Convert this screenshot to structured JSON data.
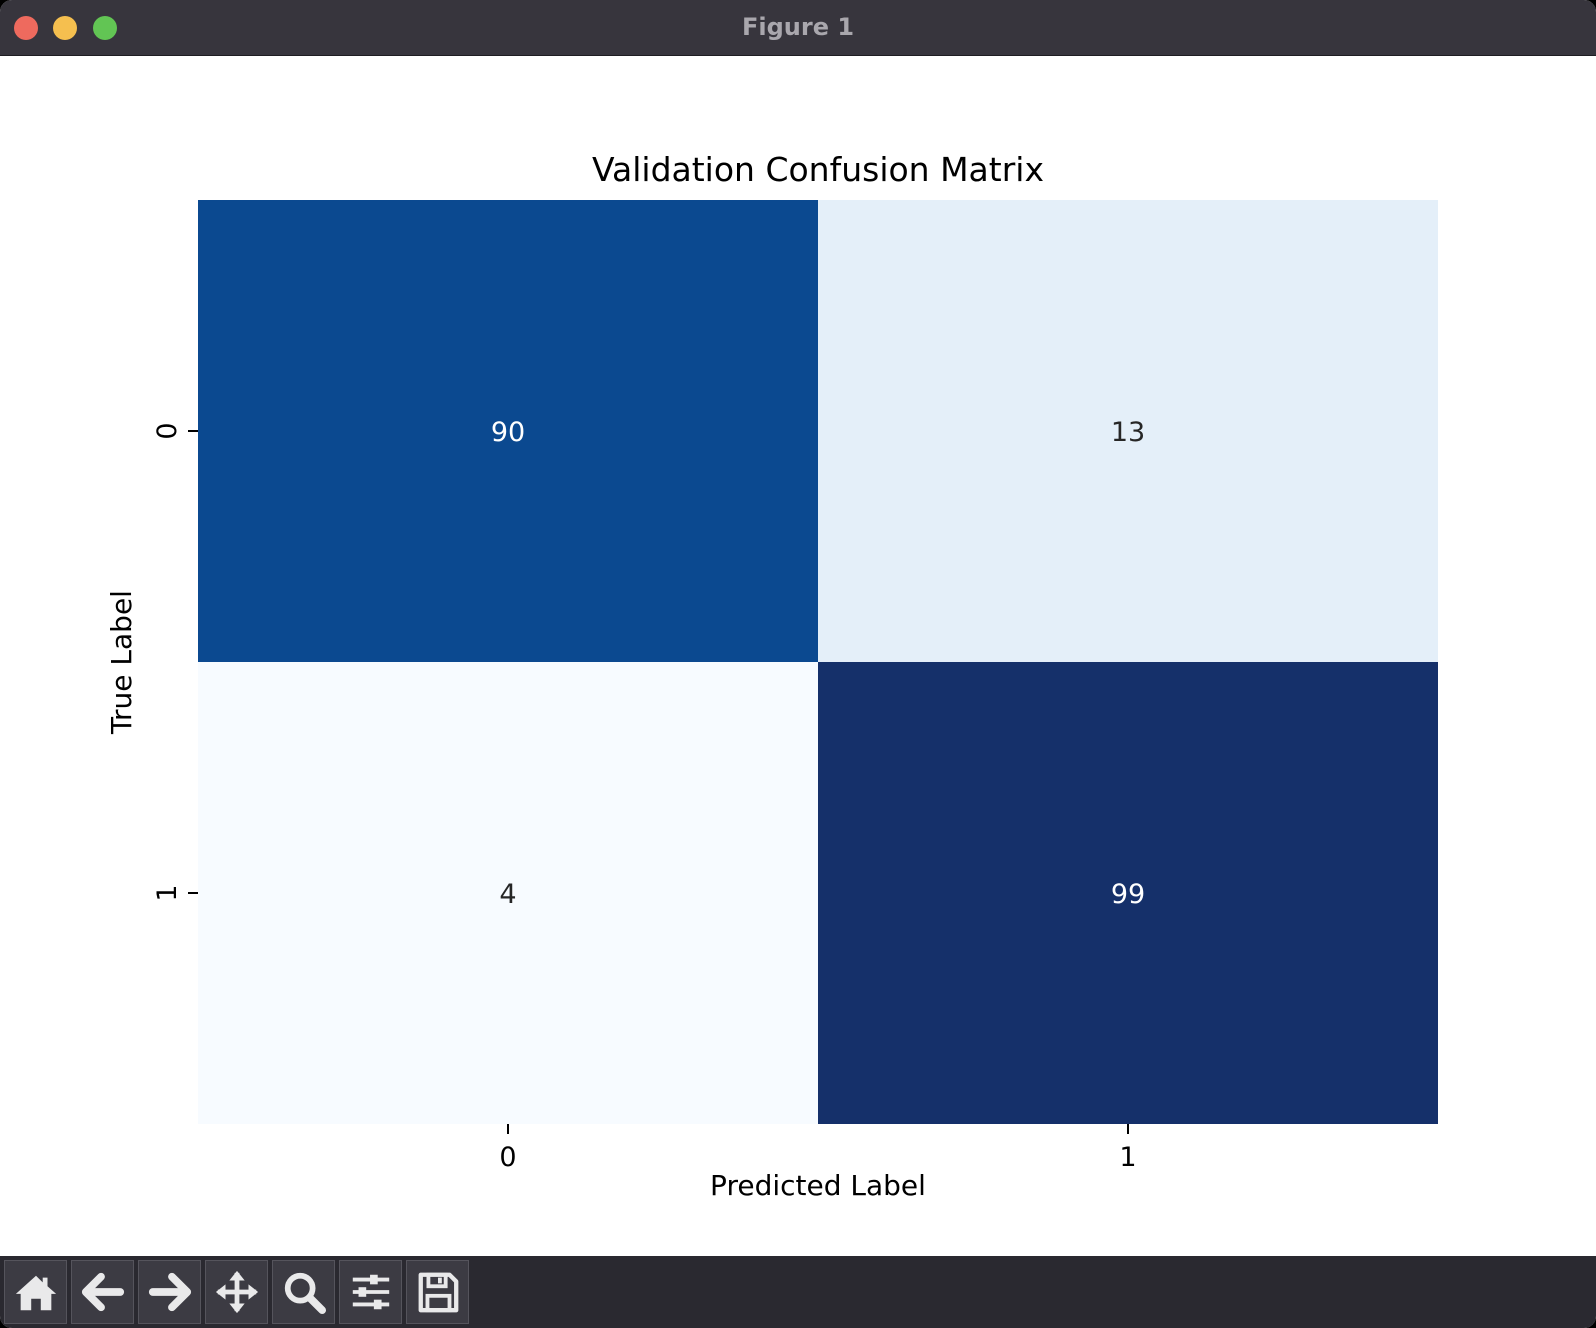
{
  "window": {
    "title": "Figure 1"
  },
  "toolbar": {
    "buttons": [
      {
        "icon": "home-icon",
        "action": "home"
      },
      {
        "icon": "arrow-left-icon",
        "action": "back"
      },
      {
        "icon": "arrow-right-icon",
        "action": "forward"
      },
      {
        "icon": "move-icon",
        "action": "pan"
      },
      {
        "icon": "magnifier-icon",
        "action": "zoom"
      },
      {
        "icon": "sliders-icon",
        "action": "configure-subplots"
      },
      {
        "icon": "floppy-disk-icon",
        "action": "save"
      }
    ]
  },
  "colors": {
    "low": "#f7fbff",
    "high": "#15306a",
    "annotation_dark": "#262626",
    "annotation_light": "#ffffff"
  },
  "chart_data": {
    "type": "heatmap",
    "title": "Validation Confusion Matrix",
    "xlabel": "Predicted Label",
    "ylabel": "True Label",
    "x_categories": [
      "0",
      "1"
    ],
    "y_categories": [
      "0",
      "1"
    ],
    "values": [
      [
        90,
        13
      ],
      [
        4,
        99
      ]
    ],
    "colormap": "Blues",
    "colorbar": false
  }
}
